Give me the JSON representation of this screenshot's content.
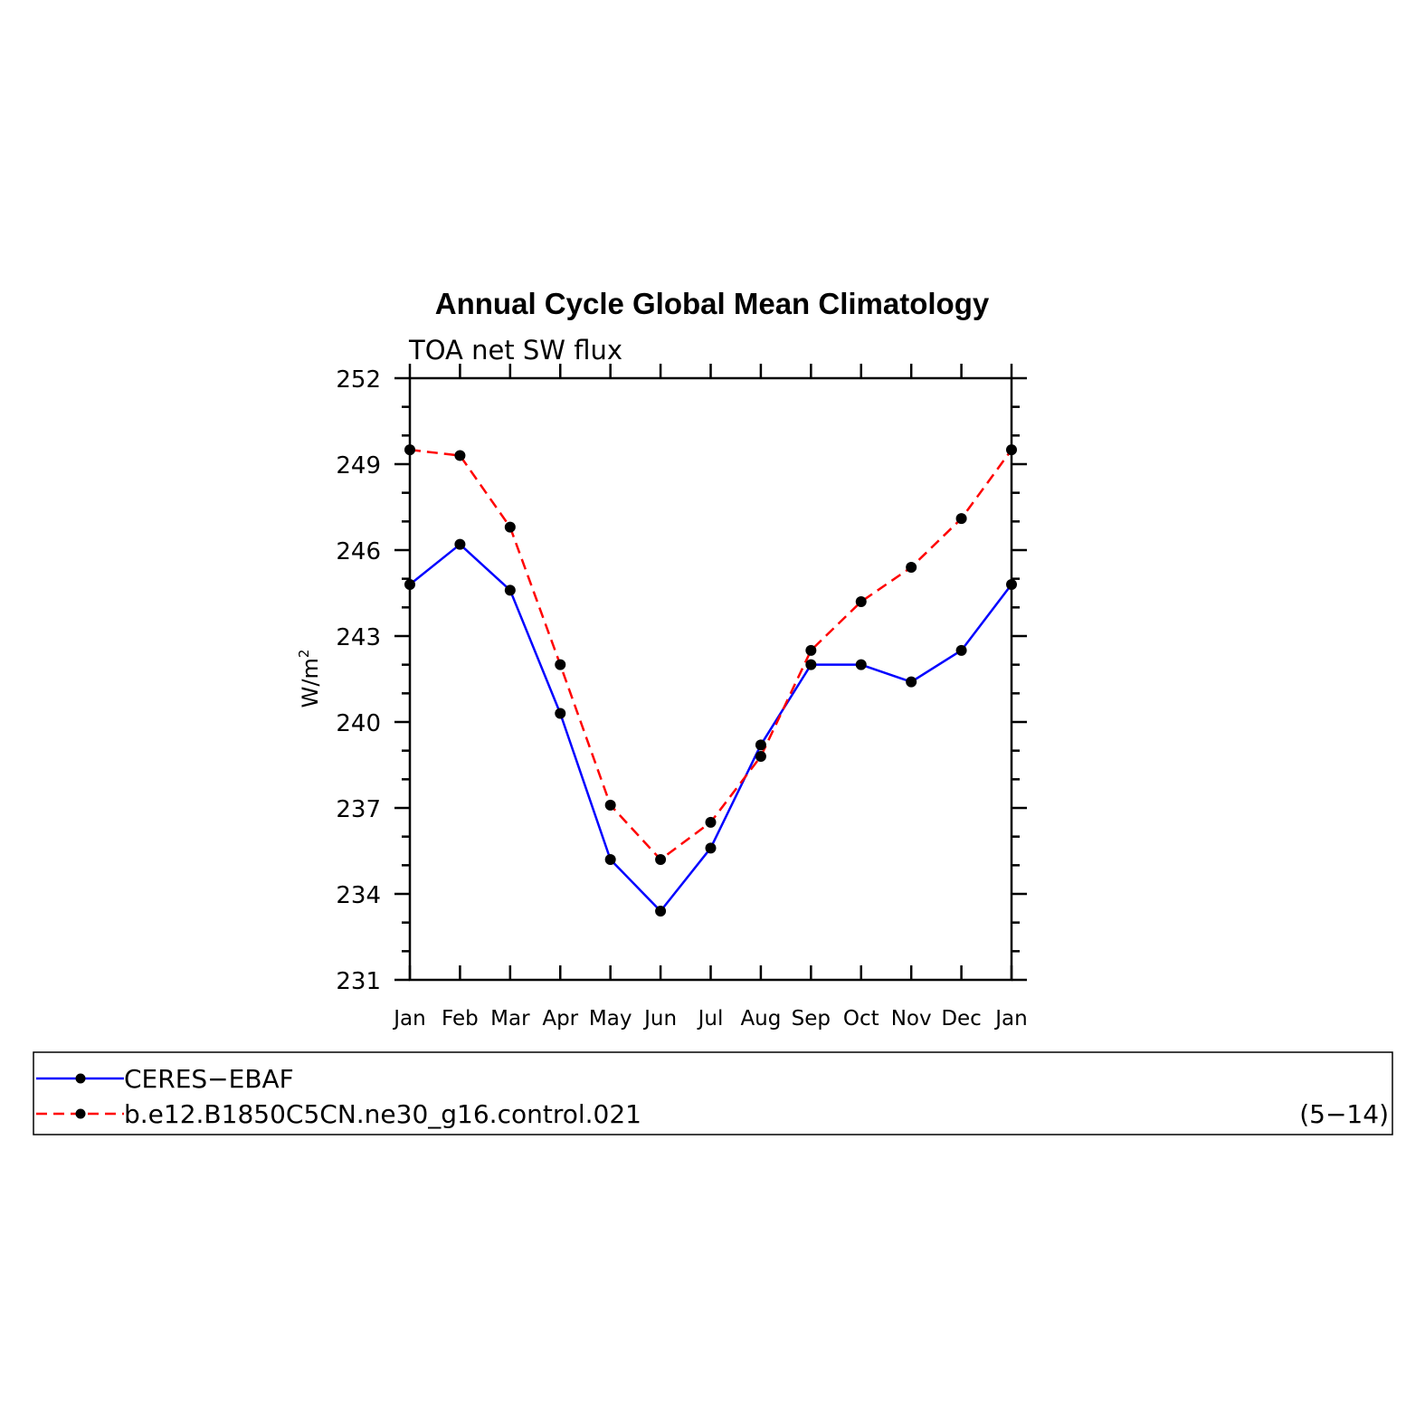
{
  "chart_data": {
    "type": "line",
    "title": "Annual Cycle Global Mean Climatology",
    "subtitle": "TOA net SW flux",
    "ylabel": "W/m",
    "ylabel_superscript": "2",
    "xlabel": "",
    "ylim": [
      231,
      252
    ],
    "yticks": [
      231,
      234,
      237,
      240,
      243,
      246,
      249,
      252
    ],
    "categories": [
      "Jan",
      "Feb",
      "Mar",
      "Apr",
      "May",
      "Jun",
      "Jul",
      "Aug",
      "Sep",
      "Oct",
      "Nov",
      "Dec",
      "Jan"
    ],
    "series": [
      {
        "name": "CERES−EBAF",
        "color": "#0000ff",
        "dash": "solid",
        "values": [
          244.8,
          246.2,
          244.6,
          240.3,
          235.2,
          233.4,
          235.6,
          239.2,
          242.0,
          242.0,
          241.4,
          242.5,
          244.8
        ]
      },
      {
        "name": "b.e12.B1850C5CN.ne30_g16.control.021",
        "color": "#ff0000",
        "dash": "dashed",
        "values": [
          249.5,
          249.3,
          246.8,
          242.0,
          237.1,
          235.2,
          236.5,
          238.8,
          242.5,
          244.2,
          245.4,
          247.1,
          249.5
        ]
      }
    ],
    "legend_note": "(5−14)",
    "legend_position": "bottom",
    "grid": false,
    "marker_color": "#000000"
  }
}
